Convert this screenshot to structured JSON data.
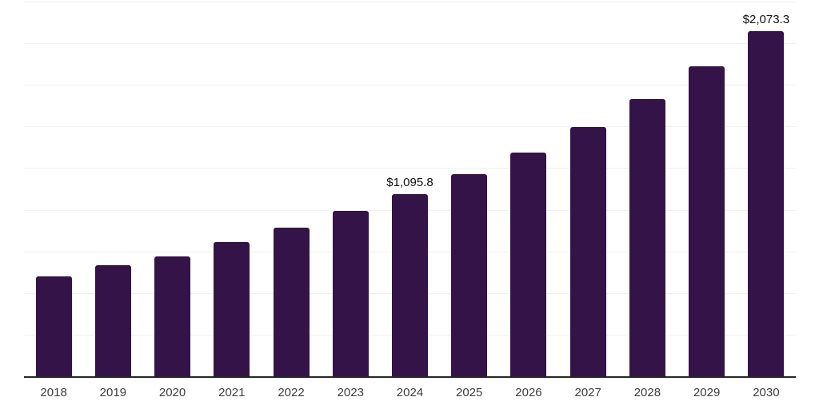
{
  "chart_data": {
    "type": "bar",
    "title": "",
    "xlabel": "",
    "ylabel": "",
    "categories": [
      "2018",
      "2019",
      "2020",
      "2021",
      "2022",
      "2023",
      "2024",
      "2025",
      "2026",
      "2027",
      "2028",
      "2029",
      "2030"
    ],
    "values": [
      598,
      665,
      718,
      804,
      894,
      993,
      1095.8,
      1214,
      1345,
      1497,
      1665,
      1860,
      2073.3
    ],
    "data_labels": [
      "",
      "",
      "",
      "",
      "",
      "",
      "$1,095.8",
      "",
      "",
      "",
      "",
      "",
      "$2,073.3"
    ],
    "ylim": [
      0,
      2250
    ],
    "gridline_interval": 250,
    "grid": "horizontal-only",
    "legend": "none",
    "colors": {
      "bar": "#341348",
      "gridline": "#f1f1f1",
      "axis": "#262626",
      "tick_label": "#3d3d3d",
      "data_label": "#111111"
    }
  }
}
